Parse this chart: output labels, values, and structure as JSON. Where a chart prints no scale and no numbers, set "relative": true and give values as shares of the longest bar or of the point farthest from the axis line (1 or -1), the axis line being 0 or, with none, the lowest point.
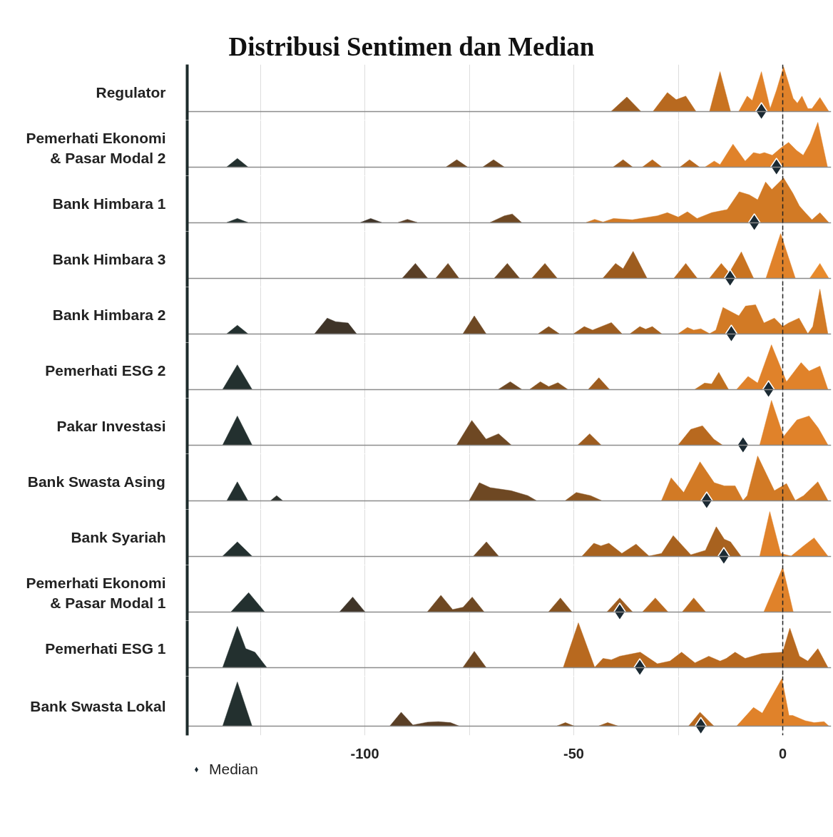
{
  "chart_data": [
    {
      "type": "area",
      "title": "Distribusi Sentimen dan Median",
      "ylabel": "Regulator",
      "relative": true,
      "xlim": [
        -142.5,
        11.6
      ],
      "xticks": [
        {
          "value": -125,
          "label": null
        },
        -100,
        {
          "value": -75,
          "label": null
        },
        -50,
        {
          "value": -25,
          "label": null
        },
        0
      ],
      "grid": "x",
      "tick_labels": false,
      "ref_lines": [
        {
          "axis": "x",
          "value": 0,
          "label": null,
          "color": "#222222",
          "line_style": "dashed"
        }
      ],
      "series": [
        {
          "color": "#9d5c1f",
          "x": [
            -41,
            -37.3,
            -34
          ],
          "values": [
            0,
            0.32,
            0
          ]
        },
        {
          "color": "#b8691f",
          "x": [
            -31,
            -27.6,
            -25.5,
            -23.2,
            -20.8
          ],
          "values": [
            0,
            0.42,
            0.26,
            0.34,
            0
          ]
        },
        {
          "color": "#c97320",
          "x": [
            -17.5,
            -15,
            -12.5
          ],
          "values": [
            0,
            0.89,
            0
          ]
        },
        {
          "color": "#e0822a",
          "x": [
            -10.5,
            -8.5,
            -7.3,
            -5.1,
            -3,
            -1.5,
            0.2,
            2.5,
            3.5,
            4.6,
            6,
            7,
            8.9,
            11
          ],
          "values": [
            0,
            0.34,
            0.24,
            0.89,
            0.06,
            0.47,
            1,
            0.29,
            0.18,
            0.34,
            0.06,
            0.06,
            0.31,
            0
          ]
        },
        {
          "type": "scatter",
          "marker": "diamond",
          "color": "#1b2a33",
          "x": [
            -5.1
          ],
          "values": [
            0
          ]
        }
      ]
    },
    {
      "type": "area",
      "ylabel": "Pemerhati Ekonomi & Pasar Modal 2",
      "relative": true,
      "xlim": [
        -142.5,
        11.6
      ],
      "xticks": [
        {
          "value": -125,
          "label": null
        },
        -100,
        {
          "value": -75,
          "label": null
        },
        -50,
        {
          "value": -25,
          "label": null
        },
        0
      ],
      "grid": "x",
      "tick_labels": false,
      "ref_lines": [
        {
          "axis": "x",
          "value": 0,
          "label": null,
          "color": "#222222",
          "line_style": "dashed"
        }
      ],
      "series": [
        {
          "color": "#23302f",
          "x": [
            -133,
            -130.5,
            -128
          ],
          "values": [
            0,
            0.19,
            0
          ]
        },
        {
          "color": "#6e4823",
          "x": [
            -80.5,
            -78,
            -75.5
          ],
          "values": [
            0,
            0.16,
            0
          ]
        },
        {
          "color": "#6e4823",
          "x": [
            -71.7,
            -69.2,
            -66.7
          ],
          "values": [
            0,
            0.16,
            0
          ]
        },
        {
          "color": "#9d5c1f",
          "x": [
            -40.5,
            -38.2,
            -36
          ],
          "values": [
            0,
            0.16,
            0
          ]
        },
        {
          "color": "#b8691f",
          "x": [
            -33.5,
            -31.2,
            -29
          ],
          "values": [
            0,
            0.16,
            0
          ]
        },
        {
          "color": "#b8691f",
          "x": [
            -24.5,
            -22.3,
            -20
          ],
          "values": [
            0,
            0.16,
            0
          ]
        },
        {
          "color": "#e0822a",
          "x": [
            -18.5,
            -16.4,
            -15,
            -11.9,
            -9,
            -7,
            -5.5,
            -4.4,
            -2.5,
            -0.5,
            1.4,
            3.3,
            4.9,
            6.5,
            8.4,
            10.7
          ],
          "values": [
            0,
            0.13,
            0.05,
            0.51,
            0.13,
            0.32,
            0.29,
            0.32,
            0.26,
            0.42,
            0.55,
            0.37,
            0.26,
            0.53,
            1,
            0
          ]
        },
        {
          "type": "scatter",
          "marker": "diamond",
          "color": "#1b2a33",
          "x": [
            -1.5
          ],
          "values": [
            0
          ]
        }
      ]
    },
    {
      "type": "area",
      "ylabel": "Bank Himbara 1",
      "relative": true,
      "xlim": [
        -142.5,
        11.6
      ],
      "xticks": [
        {
          "value": -125,
          "label": null
        },
        -100,
        {
          "value": -75,
          "label": null
        },
        -50,
        {
          "value": -25,
          "label": null
        },
        0
      ],
      "grid": "x",
      "tick_labels": false,
      "ref_lines": [
        {
          "axis": "x",
          "value": 0,
          "label": null,
          "color": "#222222",
          "line_style": "dashed"
        }
      ],
      "series": [
        {
          "color": "#23302f",
          "x": [
            -133,
            -130.5,
            -128
          ],
          "values": [
            0,
            0.09,
            0
          ]
        },
        {
          "color": "#3f3428",
          "x": [
            -101,
            -98.6,
            -96
          ],
          "values": [
            0,
            0.09,
            0
          ]
        },
        {
          "color": "#5a3f26",
          "x": [
            -92,
            -89.8,
            -87.5
          ],
          "values": [
            0,
            0.07,
            0
          ]
        },
        {
          "color": "#6e4823",
          "x": [
            -70,
            -66.6,
            -64.7,
            -62.5
          ],
          "values": [
            0,
            0.15,
            0.19,
            0
          ]
        },
        {
          "color": "#d27a25",
          "x": [
            -47,
            -45,
            -43,
            -40.5,
            -36,
            -30,
            -27.6,
            -25,
            -22.8,
            -20.5,
            -17,
            -13.3,
            -10.4,
            -8,
            -6,
            -4.1,
            -2.6,
            0.2,
            2.4,
            4,
            5.4,
            7,
            8.9,
            11
          ],
          "values": [
            0,
            0.07,
            0.01,
            0.09,
            0.06,
            0.15,
            0.22,
            0.12,
            0.24,
            0.09,
            0.22,
            0.29,
            0.69,
            0.62,
            0.51,
            0.91,
            0.74,
            1,
            0.66,
            0.37,
            0.22,
            0.06,
            0.22,
            0
          ]
        },
        {
          "type": "scatter",
          "marker": "diamond",
          "color": "#1b2a33",
          "x": [
            -6.8
          ],
          "values": [
            0
          ]
        }
      ]
    },
    {
      "type": "area",
      "ylabel": "Bank Himbara 3",
      "relative": true,
      "xlim": [
        -142.5,
        11.6
      ],
      "xticks": [
        {
          "value": -125,
          "label": null
        },
        -100,
        {
          "value": -75,
          "label": null
        },
        -50,
        {
          "value": -25,
          "label": null
        },
        0
      ],
      "grid": "x",
      "tick_labels": false,
      "ref_lines": [
        {
          "axis": "x",
          "value": 0,
          "label": null,
          "color": "#222222",
          "line_style": "dashed"
        }
      ],
      "series": [
        {
          "color": "#5a3f26",
          "x": [
            -91,
            -87.9,
            -85
          ],
          "values": [
            0,
            0.33,
            0
          ]
        },
        {
          "color": "#6e4823",
          "x": [
            -83,
            -80.1,
            -77.5
          ],
          "values": [
            0,
            0.33,
            0
          ]
        },
        {
          "color": "#6e4823",
          "x": [
            -69,
            -65.9,
            -63
          ],
          "values": [
            0,
            0.33,
            0
          ]
        },
        {
          "color": "#86521f",
          "x": [
            -60,
            -56.9,
            -54
          ],
          "values": [
            0,
            0.33,
            0
          ]
        },
        {
          "color": "#9d5c1f",
          "x": [
            -43,
            -40,
            -38.2,
            -35.8,
            -32.5
          ],
          "values": [
            0,
            0.33,
            0.21,
            0.6,
            0
          ]
        },
        {
          "color": "#b8691f",
          "x": [
            -26,
            -23.2,
            -20.5
          ],
          "values": [
            0,
            0.33,
            0
          ]
        },
        {
          "color": "#c97320",
          "x": [
            -17.5,
            -14.7,
            -12.8,
            -9.9,
            -7
          ],
          "values": [
            0,
            0.33,
            0.12,
            0.59,
            0
          ]
        },
        {
          "color": "#e0822a",
          "x": [
            -4,
            -0.5,
            3
          ],
          "values": [
            0,
            1,
            0
          ]
        },
        {
          "color": "#e88a2c",
          "x": [
            6.5,
            8.9,
            11
          ],
          "values": [
            0,
            0.33,
            0
          ]
        },
        {
          "type": "scatter",
          "marker": "diamond",
          "color": "#1b2a33",
          "x": [
            -12.6
          ],
          "values": [
            0
          ]
        }
      ]
    },
    {
      "type": "area",
      "ylabel": "Bank Himbara 2",
      "relative": true,
      "xlim": [
        -142.5,
        11.6
      ],
      "xticks": [
        {
          "value": -125,
          "label": null
        },
        -100,
        {
          "value": -75,
          "label": null
        },
        -50,
        {
          "value": -25,
          "label": null
        },
        0
      ],
      "grid": "x",
      "tick_labels": false,
      "ref_lines": [
        {
          "axis": "x",
          "value": 0,
          "label": null,
          "color": "#222222",
          "line_style": "dashed"
        }
      ],
      "series": [
        {
          "color": "#23302f",
          "x": [
            -133,
            -130.5,
            -128
          ],
          "values": [
            0,
            0.19,
            0
          ]
        },
        {
          "color": "#3f3428",
          "x": [
            -112,
            -109,
            -107,
            -104,
            -102
          ],
          "values": [
            0,
            0.35,
            0.27,
            0.24,
            0
          ]
        },
        {
          "color": "#6e4823",
          "x": [
            -76.5,
            -73.8,
            -71
          ],
          "values": [
            0,
            0.4,
            0
          ]
        },
        {
          "color": "#86521f",
          "x": [
            -58.5,
            -56,
            -53.5
          ],
          "values": [
            0,
            0.16,
            0
          ]
        },
        {
          "color": "#9d5c1f",
          "x": [
            -50,
            -47.5,
            -45.5,
            -41,
            -38.5
          ],
          "values": [
            0,
            0.16,
            0.08,
            0.25,
            0
          ]
        },
        {
          "color": "#a8621f",
          "x": [
            -36.5,
            -34.2,
            -32.8,
            -31.2,
            -29
          ],
          "values": [
            0,
            0.16,
            0.1,
            0.16,
            0
          ]
        },
        {
          "color": "#d27a25",
          "x": [
            -25,
            -22.8,
            -21.3,
            -19.6,
            -17.5,
            -16,
            -14.3,
            -12,
            -10.5,
            -8.9,
            -6.5,
            -4.5,
            -2,
            0,
            1.4,
            3.9,
            6,
            7.2,
            8.9,
            10.8
          ],
          "values": [
            0,
            0.14,
            0.08,
            0.11,
            0,
            0.08,
            0.59,
            null,
            0.4,
            0.62,
            0.65,
            0.24,
            0.35,
            0.16,
            0.24,
            0.35,
            0,
            0.16,
            1,
            0
          ]
        },
        {
          "type": "scatter",
          "marker": "diamond",
          "color": "#1b2a33",
          "x": [
            -12.3
          ],
          "values": [
            0
          ]
        }
      ]
    },
    {
      "type": "area",
      "ylabel": "Pemerhati ESG 2",
      "relative": true,
      "xlim": [
        -142.5,
        11.6
      ],
      "xticks": [
        {
          "value": -125,
          "label": null
        },
        -100,
        {
          "value": -75,
          "label": null
        },
        -50,
        {
          "value": -25,
          "label": null
        },
        0
      ],
      "grid": "x",
      "tick_labels": false,
      "ref_lines": [
        {
          "axis": "x",
          "value": 0,
          "label": null,
          "color": "#222222",
          "line_style": "dashed"
        }
      ],
      "series": [
        {
          "color": "#23302f",
          "x": [
            -134,
            -130.5,
            -127
          ],
          "values": [
            0,
            0.55,
            0
          ]
        },
        {
          "color": "#6e4823",
          "x": [
            -68,
            -65.2,
            -62.5
          ],
          "values": [
            0,
            0.17,
            0
          ]
        },
        {
          "color": "#86521f",
          "x": [
            -60.5,
            -58,
            -56,
            -53.8,
            -51.5
          ],
          "values": [
            0,
            0.17,
            0.06,
            0.15,
            0
          ]
        },
        {
          "color": "#9d5c1f",
          "x": [
            -46.5,
            -44,
            -41.5
          ],
          "values": [
            0,
            0.26,
            0
          ]
        },
        {
          "color": "#c0701f",
          "x": [
            -21,
            -18.7,
            -17,
            -15.3,
            -13
          ],
          "values": [
            0,
            0.14,
            0.12,
            0.38,
            0
          ]
        },
        {
          "color": "#e0822a",
          "x": [
            -11,
            -8.3,
            -6,
            -2.7,
            0.9,
            4.4,
            6.3,
            8.9,
            10.8
          ],
          "values": [
            0,
            0.29,
            0.14,
            1,
            0.17,
            0.6,
            0.41,
            0.52,
            0
          ]
        },
        {
          "type": "scatter",
          "marker": "diamond",
          "color": "#1b2a33",
          "x": [
            -3.4
          ],
          "values": [
            0
          ]
        }
      ]
    },
    {
      "type": "area",
      "ylabel": "Pakar Investasi",
      "relative": true,
      "xlim": [
        -142.5,
        11.6
      ],
      "xticks": [
        {
          "value": -125,
          "label": null
        },
        -100,
        {
          "value": -75,
          "label": null
        },
        -50,
        {
          "value": -25,
          "label": null
        },
        0
      ],
      "grid": "x",
      "tick_labels": false,
      "ref_lines": [
        {
          "axis": "x",
          "value": 0,
          "label": null,
          "color": "#222222",
          "line_style": "dashed"
        }
      ],
      "series": [
        {
          "color": "#23302f",
          "x": [
            -134,
            -130.5,
            -127
          ],
          "values": [
            0,
            0.65,
            0
          ]
        },
        {
          "color": "#6e4823",
          "x": [
            -78,
            -74.4,
            -71,
            -68,
            -65
          ],
          "values": [
            0,
            0.55,
            0.13,
            0.25,
            0
          ]
        },
        {
          "color": "#9d5c1f",
          "x": [
            -49,
            -46.2,
            -43.5
          ],
          "values": [
            0,
            0.25,
            0
          ]
        },
        {
          "color": "#b8691f",
          "x": [
            -25,
            -22,
            -19.2,
            -16.5,
            -14.5
          ],
          "values": [
            0,
            0.35,
            0.43,
            0.13,
            0
          ]
        },
        {
          "color": "#e0822a",
          "x": [
            -5.5,
            -2.7,
            0.2,
            3.4,
            6.3,
            8.5,
            10.8
          ],
          "values": [
            0,
            1,
            0.19,
            0.56,
            0.65,
            0.38,
            0
          ]
        },
        {
          "type": "scatter",
          "marker": "diamond",
          "color": "#1b2a33",
          "x": [
            -9.5
          ],
          "values": [
            0
          ]
        }
      ]
    },
    {
      "type": "area",
      "ylabel": "Bank Swasta Asing",
      "relative": true,
      "xlim": [
        -142.5,
        11.6
      ],
      "xticks": [
        {
          "value": -125,
          "label": null
        },
        -100,
        {
          "value": -75,
          "label": null
        },
        -50,
        {
          "value": -25,
          "label": null
        },
        0
      ],
      "grid": "x",
      "tick_labels": false,
      "ref_lines": [
        {
          "axis": "x",
          "value": 0,
          "label": null,
          "color": "#222222",
          "line_style": "dashed"
        }
      ],
      "series": [
        {
          "color": "#23302f",
          "x": [
            -133,
            -130.5,
            -128
          ],
          "values": [
            0,
            0.42,
            0
          ]
        },
        {
          "color": "#2c312d",
          "x": [
            -122.5,
            -121.1,
            -119.7
          ],
          "values": [
            0,
            0.11,
            0
          ]
        },
        {
          "color": "#6e4823",
          "x": [
            -75,
            -72.6,
            -70,
            -65,
            -61,
            -59
          ],
          "values": [
            0,
            0.4,
            0.29,
            0.22,
            0.11,
            0
          ]
        },
        {
          "color": "#8e561f",
          "x": [
            -52,
            -49.4,
            -46,
            -43.4
          ],
          "values": [
            0,
            0.18,
            0.11,
            0
          ]
        },
        {
          "color": "#d27a25",
          "x": [
            -29,
            -26.7,
            -23.7,
            -19.8,
            -16.4,
            -14,
            -11.4,
            -9.5,
            -8.5,
            -6,
            -2,
            0.9,
            3,
            5,
            8.4,
            10.8
          ],
          "values": [
            0,
            0.51,
            0.18,
            0.87,
            0.4,
            0.33,
            0.33,
            0,
            0.11,
            1,
            0.22,
            0.38,
            0,
            0.11,
            0.42,
            0
          ]
        },
        {
          "type": "scatter",
          "marker": "diamond",
          "color": "#1b2a33",
          "x": [
            -18.2
          ],
          "values": [
            0
          ]
        }
      ]
    },
    {
      "type": "area",
      "ylabel": "Bank Syariah",
      "relative": true,
      "xlim": [
        -142.5,
        11.6
      ],
      "xticks": [
        {
          "value": -125,
          "label": null
        },
        -100,
        {
          "value": -75,
          "label": null
        },
        -50,
        {
          "value": -25,
          "label": null
        },
        0
      ],
      "grid": "x",
      "tick_labels": false,
      "ref_lines": [
        {
          "axis": "x",
          "value": 0,
          "label": null,
          "color": "#222222",
          "line_style": "dashed"
        }
      ],
      "series": [
        {
          "color": "#23302f",
          "x": [
            -134,
            -130.5,
            -127
          ],
          "values": [
            0,
            0.32,
            0
          ]
        },
        {
          "color": "#6e4823",
          "x": [
            -74,
            -70.9,
            -68
          ],
          "values": [
            0,
            0.32,
            0
          ]
        },
        {
          "color": "#a8621f",
          "x": [
            -48,
            -45.2,
            -43.5,
            -41.6,
            -38.5,
            -35.1,
            -32,
            -29,
            -26.2,
            -22,
            -18.5,
            -15.9,
            -14,
            -12.5,
            -10
          ],
          "values": [
            0,
            0.29,
            0.23,
            0.29,
            0.06,
            0.27,
            0,
            0.06,
            0.46,
            0.03,
            0.13,
            0.66,
            0.38,
            0.32,
            0
          ]
        },
        {
          "color": "#e0822a",
          "x": [
            -5.5,
            -3.1,
            -0.5,
            2,
            5,
            7.5,
            10.8
          ],
          "values": [
            0,
            1,
            0.06,
            0,
            0.23,
            0.41,
            0
          ]
        },
        {
          "type": "scatter",
          "marker": "diamond",
          "color": "#1b2a33",
          "x": [
            -14.1
          ],
          "values": [
            0
          ]
        }
      ]
    },
    {
      "type": "area",
      "ylabel": "Pemerhati Ekonomi & Pasar Modal 1",
      "relative": true,
      "xlim": [
        -142.5,
        11.6
      ],
      "xticks": [
        {
          "value": -125,
          "label": null
        },
        -100,
        {
          "value": -75,
          "label": null
        },
        -50,
        {
          "value": -25,
          "label": null
        },
        0
      ],
      "grid": "x",
      "tick_labels": false,
      "ref_lines": [
        {
          "axis": "x",
          "value": 0,
          "label": null,
          "color": "#222222",
          "line_style": "dashed"
        }
      ],
      "series": [
        {
          "color": "#23302f",
          "x": [
            -132,
            -127.8,
            -124
          ],
          "values": [
            0,
            0.43,
            0
          ]
        },
        {
          "color": "#3f3428",
          "x": [
            -106,
            -102.9,
            -100
          ],
          "values": [
            0,
            0.33,
            0
          ]
        },
        {
          "color": "#6e4823",
          "x": [
            -85,
            -81.8,
            -79,
            -76.5,
            -74.3,
            -71.5
          ],
          "values": [
            0,
            0.37,
            0.05,
            0.1,
            0.33,
            0
          ]
        },
        {
          "color": "#86521f",
          "x": [
            -56,
            -53.2,
            -50.5
          ],
          "values": [
            0,
            0.31,
            0
          ]
        },
        {
          "color": "#9d5c1f",
          "x": [
            -42,
            -39,
            -36
          ],
          "values": [
            0,
            0.31,
            0
          ]
        },
        {
          "color": "#b8691f",
          "x": [
            -33.5,
            -30.5,
            -27.5
          ],
          "values": [
            0,
            0.31,
            0
          ]
        },
        {
          "color": "#b8691f",
          "x": [
            -24,
            -21.3,
            -18.5
          ],
          "values": [
            0,
            0.31,
            0
          ]
        },
        {
          "color": "#e0822a",
          "x": [
            -4.5,
            0,
            2.5
          ],
          "values": [
            0,
            1,
            0
          ]
        },
        {
          "type": "scatter",
          "marker": "diamond",
          "color": "#1b2a33",
          "x": [
            -39.0
          ],
          "values": [
            0
          ]
        }
      ]
    },
    {
      "type": "area",
      "ylabel": "Pemerhati ESG 1",
      "relative": true,
      "xlim": [
        -142.5,
        11.6
      ],
      "xticks": [
        {
          "value": -125,
          "label": null
        },
        -100,
        {
          "value": -75,
          "label": null
        },
        -50,
        {
          "value": -25,
          "label": null
        },
        0
      ],
      "grid": "x",
      "tick_labels": false,
      "ref_lines": [
        {
          "axis": "x",
          "value": 0,
          "label": null,
          "color": "#222222",
          "line_style": "dashed"
        }
      ],
      "series": [
        {
          "color": "#23302f",
          "x": [
            -134,
            -130.5,
            -128.5,
            -126.3,
            -123.5
          ],
          "values": [
            0,
            0.92,
            0.42,
            0.34,
            0
          ]
        },
        {
          "color": "#6e4823",
          "x": [
            -76.5,
            -73.8,
            -71
          ],
          "values": [
            0,
            0.36,
            0
          ]
        },
        {
          "color": "#b8691f",
          "x": [
            -52.5,
            -48.9,
            -45,
            -43,
            -41,
            -39,
            -34.1,
            -30,
            -27,
            -24.2,
            -21,
            -17.7,
            -15,
            -13.5,
            -11.4,
            -9,
            -5,
            0,
            1.7,
            4,
            6,
            8.4,
            10.8
          ],
          "values": [
            0,
            1,
            0,
            0.2,
            0.17,
            0.25,
            0.34,
            0.08,
            0.14,
            0.34,
            0.1,
            0.25,
            0.14,
            0.2,
            0.34,
            0.2,
            0.31,
            0.34,
            0.88,
            0.25,
            0.14,
            0.42,
            0
          ]
        },
        {
          "type": "scatter",
          "marker": "diamond",
          "color": "#1b2a33",
          "x": [
            -34.2
          ],
          "values": [
            0
          ]
        }
      ]
    },
    {
      "type": "area",
      "ylabel": "Bank Swasta Lokal",
      "relative": true,
      "xlim": [
        -142.5,
        11.6
      ],
      "xticks": [
        {
          "value": -125,
          "label": null
        },
        -100,
        {
          "value": -75,
          "label": null
        },
        -50,
        {
          "value": -25,
          "label": null
        },
        0
      ],
      "grid": "x",
      "tick_labels": "x",
      "legend": "bottom left",
      "ref_lines": [
        {
          "axis": "x",
          "value": 0,
          "label": null,
          "color": "#222222",
          "line_style": "dashed"
        }
      ],
      "series": [
        {
          "color": "#23302f",
          "x": [
            -134,
            -130.5,
            -127
          ],
          "values": [
            0,
            0.93,
            0
          ]
        },
        {
          "color": "#5a3f26",
          "x": [
            -94,
            -91.3,
            -88.5,
            -85,
            -82.4,
            -79.5,
            -77.5
          ],
          "values": [
            0,
            0.29,
            0.02,
            0.08,
            0.09,
            0.07,
            0
          ]
        },
        {
          "color": "#86521f",
          "x": [
            -54,
            -52,
            -50
          ],
          "values": [
            0,
            0.07,
            0
          ]
        },
        {
          "color": "#9d5c1f",
          "x": [
            -44,
            -41.9,
            -39.5
          ],
          "values": [
            0,
            0.07,
            0
          ]
        },
        {
          "color": "#b8691f",
          "x": [
            -22.5,
            -19.8,
            -16.5
          ],
          "values": [
            0,
            0.29,
            0
          ]
        },
        {
          "color": "#e0822a",
          "x": [
            -11,
            -7,
            -4.9,
            -0.2,
            1.5,
            2.4,
            5.4,
            7.5,
            9.9,
            11
          ],
          "values": [
            0,
            0.39,
            0.27,
            1,
            0.22,
            0.22,
            0.11,
            0.07,
            0.09,
            0
          ]
        },
        {
          "name": "Median",
          "type": "scatter",
          "marker": "diamond",
          "color": "#1b2a33",
          "x": [
            -19.6
          ],
          "values": [
            0
          ]
        }
      ]
    }
  ]
}
